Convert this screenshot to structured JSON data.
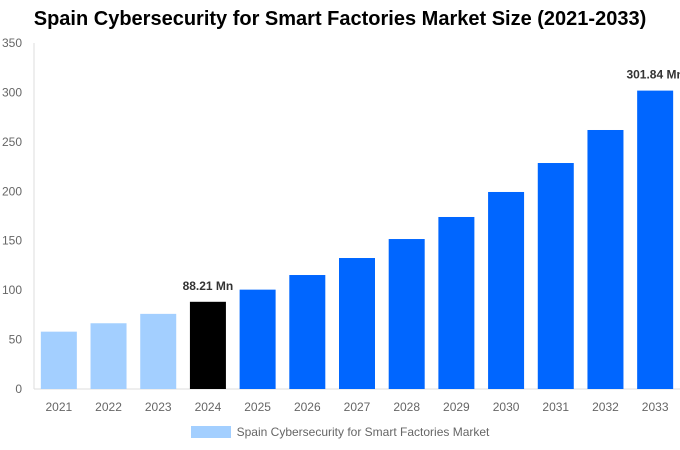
{
  "chart_data": {
    "type": "bar",
    "title": "Spain Cybersecurity for Smart Factories Market Size (2021-2033)",
    "categories": [
      "2021",
      "2022",
      "2023",
      "2024",
      "2025",
      "2026",
      "2027",
      "2028",
      "2029",
      "2030",
      "2031",
      "2032",
      "2033"
    ],
    "series": [
      {
        "name": "Spain Cybersecurity for Smart Factories Market",
        "values": [
          58,
          66.5,
          76,
          88.21,
          100.5,
          115.3,
          132.5,
          151.7,
          174,
          199.3,
          228.6,
          262,
          301.84
        ]
      }
    ],
    "bar_colors": [
      "#a3cfff",
      "#a3cfff",
      "#a3cfff",
      "#000000",
      "#0066ff",
      "#0066ff",
      "#0066ff",
      "#0066ff",
      "#0066ff",
      "#0066ff",
      "#0066ff",
      "#0066ff",
      "#0066ff"
    ],
    "data_labels": [
      {
        "index": 3,
        "text": "88.21 Mn"
      },
      {
        "index": 12,
        "text": "301.84 Mn"
      }
    ],
    "yticks": [
      0,
      50,
      100,
      150,
      200,
      250,
      300,
      350
    ],
    "ylim": [
      0,
      350
    ],
    "grid": false,
    "legend_position": "bottom",
    "legend_color": "#a3cfff"
  }
}
